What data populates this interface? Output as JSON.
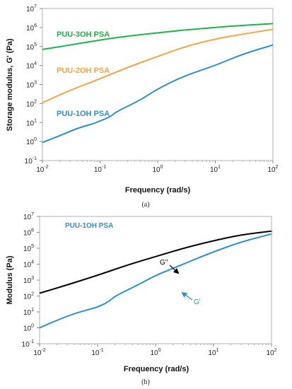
{
  "chart_data": [
    {
      "type": "line",
      "caption": "(a)",
      "xlabel": "Frequency (rad/s)",
      "ylabel": "Storage modulus, G' (Pa)",
      "xscale": "log",
      "yscale": "log",
      "xlim": [
        0.01,
        100
      ],
      "ylim": [
        0.1,
        10000000
      ],
      "x_ticks": [
        {
          "base": "10",
          "exp": "-2"
        },
        {
          "base": "10",
          "exp": "-1"
        },
        {
          "base": "10",
          "exp": "0"
        },
        {
          "base": "10",
          "exp": "1"
        },
        {
          "base": "10",
          "exp": "2"
        }
      ],
      "y_ticks": [
        {
          "base": "10",
          "exp": "-1"
        },
        {
          "base": "10",
          "exp": "0"
        },
        {
          "base": "10",
          "exp": "1"
        },
        {
          "base": "10",
          "exp": "2"
        },
        {
          "base": "10",
          "exp": "3"
        },
        {
          "base": "10",
          "exp": "4"
        },
        {
          "base": "10",
          "exp": "5"
        },
        {
          "base": "10",
          "exp": "6"
        },
        {
          "base": "10",
          "exp": "7"
        }
      ],
      "grid": false,
      "series": [
        {
          "name": "PUU-3OH PSA",
          "color": "#22b04b",
          "points": [
            [
              0.01,
              70000
            ],
            [
              0.03,
              120000
            ],
            [
              0.1,
              220000
            ],
            [
              0.3,
              350000
            ],
            [
              1,
              520000
            ],
            [
              3,
              750000
            ],
            [
              10,
              1000000
            ],
            [
              30,
              1300000
            ],
            [
              100,
              1600000
            ]
          ]
        },
        {
          "name": "PUU-2OH PSA",
          "color": "#f7a34b",
          "points": [
            [
              0.01,
              110
            ],
            [
              0.03,
              500
            ],
            [
              0.1,
              2000
            ],
            [
              0.3,
              8000
            ],
            [
              1,
              30000
            ],
            [
              3,
              100000
            ],
            [
              10,
              250000
            ],
            [
              30,
              450000
            ],
            [
              100,
              800000
            ]
          ]
        },
        {
          "name": "PUU-1OH PSA",
          "color": "#2e8fc9",
          "points": [
            [
              0.01,
              0.9
            ],
            [
              0.02,
              2
            ],
            [
              0.04,
              5
            ],
            [
              0.07,
              8
            ],
            [
              0.1,
              12
            ],
            [
              0.15,
              20
            ],
            [
              0.2,
              40
            ],
            [
              0.5,
              150
            ],
            [
              1,
              600
            ],
            [
              3,
              3000
            ],
            [
              10,
              10000
            ],
            [
              30,
              40000
            ],
            [
              100,
              120000
            ]
          ]
        }
      ]
    },
    {
      "type": "line",
      "caption": "(b)",
      "title": "PUU-1OH PSA",
      "xlabel": "Frequency (rad/s)",
      "ylabel": "Modulus (Pa)",
      "xscale": "log",
      "yscale": "log",
      "xlim": [
        0.01,
        100
      ],
      "ylim": [
        0.1,
        10000000
      ],
      "x_ticks": [
        {
          "base": "10",
          "exp": "-2"
        },
        {
          "base": "10",
          "exp": "-1"
        },
        {
          "base": "10",
          "exp": "0"
        },
        {
          "base": "10",
          "exp": "1"
        },
        {
          "base": "10",
          "exp": "2"
        }
      ],
      "y_ticks": [
        {
          "base": "10",
          "exp": "-1"
        },
        {
          "base": "10",
          "exp": "0"
        },
        {
          "base": "10",
          "exp": "1"
        },
        {
          "base": "10",
          "exp": "2"
        },
        {
          "base": "10",
          "exp": "3"
        },
        {
          "base": "10",
          "exp": "4"
        },
        {
          "base": "10",
          "exp": "5"
        },
        {
          "base": "10",
          "exp": "6"
        },
        {
          "base": "10",
          "exp": "7"
        }
      ],
      "grid": false,
      "series": [
        {
          "name": "G''",
          "color": "#000000",
          "points": [
            [
              0.01,
              150
            ],
            [
              0.03,
              500
            ],
            [
              0.1,
              2000
            ],
            [
              0.3,
              8000
            ],
            [
              1,
              30000
            ],
            [
              3,
              100000
            ],
            [
              10,
              300000
            ],
            [
              30,
              700000
            ],
            [
              100,
              1200000
            ]
          ]
        },
        {
          "name": "G'",
          "color": "#2e8fc9",
          "points": [
            [
              0.01,
              1
            ],
            [
              0.02,
              3
            ],
            [
              0.04,
              8
            ],
            [
              0.07,
              14
            ],
            [
              0.1,
              20
            ],
            [
              0.15,
              40
            ],
            [
              0.2,
              100
            ],
            [
              0.5,
              500
            ],
            [
              1,
              2000
            ],
            [
              3,
              10000
            ],
            [
              10,
              60000
            ],
            [
              30,
              250000
            ],
            [
              100,
              800000
            ]
          ]
        }
      ]
    }
  ]
}
